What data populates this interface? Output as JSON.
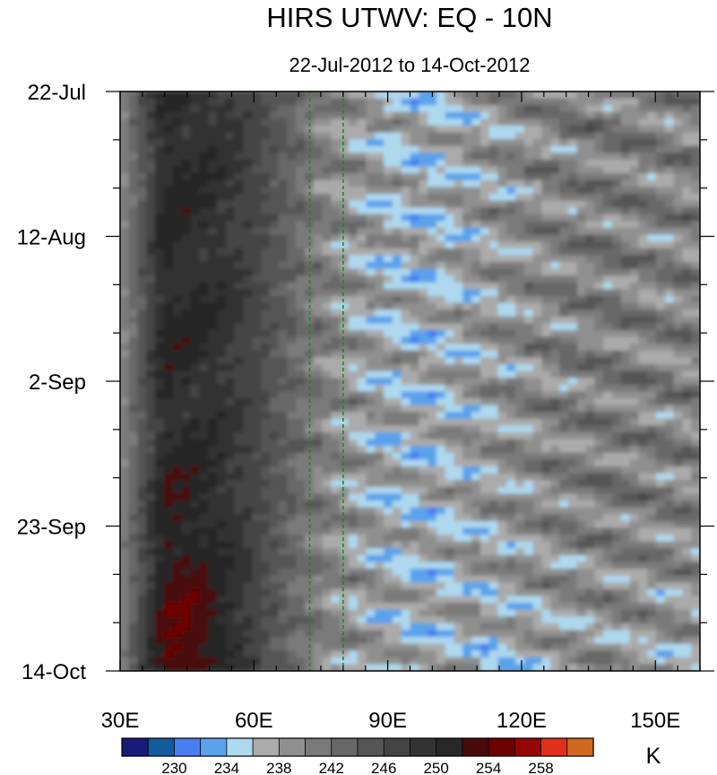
{
  "chart_data": {
    "type": "heatmap",
    "title": "HIRS UTWV: EQ - 10N",
    "subtitle": "22-Jul-2012 to 14-Oct-2012",
    "xlabel": "",
    "ylabel": "",
    "x_unit": "longitude (degrees E)",
    "xlim": [
      30,
      160
    ],
    "x_ticks": [
      30,
      60,
      90,
      120,
      150
    ],
    "x_tick_labels": [
      "30E",
      "60E",
      "90E",
      "120E",
      "150E"
    ],
    "y_start_date": "2012-07-22",
    "y_end_date": "2012-10-14",
    "y_ticks": [
      "2012-07-22",
      "2012-08-12",
      "2012-09-02",
      "2012-09-23",
      "2012-10-14"
    ],
    "y_tick_labels": [
      "22-Jul",
      "12-Aug",
      "2-Sep",
      "23-Sep",
      "14-Oct"
    ],
    "y_direction": "time increases downward",
    "reference_lines": [
      {
        "lon": 72.5,
        "style": "dashed",
        "color": "#1a8a1a"
      },
      {
        "lon": 80,
        "style": "dashed",
        "color": "#1a8a1a"
      }
    ],
    "colorbar": {
      "unit": "K",
      "levels": [
        228,
        230,
        232,
        234,
        236,
        238,
        240,
        242,
        244,
        246,
        248,
        250,
        252,
        254,
        256,
        258
      ],
      "labels": [
        "230",
        "234",
        "238",
        "242",
        "246",
        "250",
        "254",
        "258"
      ],
      "label_values": [
        230,
        234,
        238,
        242,
        246,
        250,
        254,
        258
      ],
      "colors": [
        "#1a1a7a",
        "#145a9e",
        "#4a7ef0",
        "#5aa2ec",
        "#aed8ee",
        "#aaaaaa",
        "#8f8f8f",
        "#7a7a7a",
        "#676767",
        "#555555",
        "#444444",
        "#333333",
        "#282828",
        "#4a0a0a",
        "#6e0000",
        "#960606",
        "#e0301a",
        "#d0681e"
      ]
    },
    "data_description": "UTWV brightness temperature (K) averaged over EQ-10N, as a function of longitude and date",
    "field_summary": {
      "lon_nodes": [
        30,
        40,
        50,
        60,
        70,
        80,
        90,
        100,
        110,
        120,
        130,
        140,
        150,
        160
      ],
      "mean_by_lon": [
        239.5,
        250.5,
        249.5,
        247.0,
        242.5,
        239.0,
        237.0,
        236.5,
        238.0,
        239.5,
        240.5,
        241.0,
        240.5,
        240.5
      ]
    }
  }
}
